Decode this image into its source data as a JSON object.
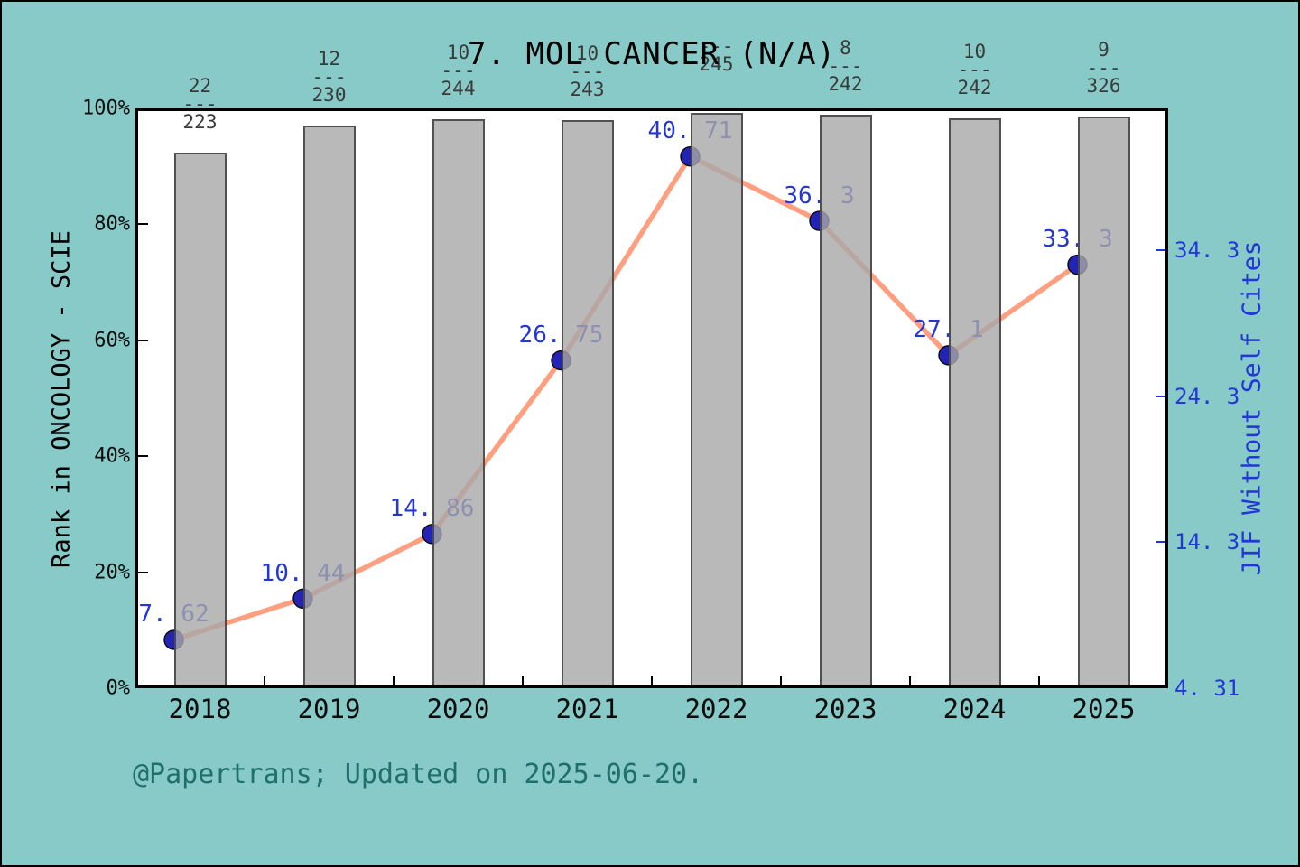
{
  "header": {
    "title": "7. MOL CANCER (N/A)"
  },
  "footer": {
    "text": "@Papertrans; Updated on 2025-06-20."
  },
  "colors": {
    "background": "#87cac7",
    "plot_background": "#ffffff",
    "bar_fill": "#a8a8a8",
    "bar_border": "#3e3e3e",
    "line": "#ff9f80",
    "marker": "#2424b4",
    "value_label_blue": "#2336d8",
    "right_axis_blue": "#2336d8",
    "footer_teal": "#1f6f6a",
    "text_black": "#0c0c0c"
  },
  "chart_data": {
    "type": [
      "bar",
      "line"
    ],
    "title": "7. MOL CANCER (N/A)",
    "categories": [
      "2018",
      "2019",
      "2020",
      "2021",
      "2022",
      "2023",
      "2024",
      "2025"
    ],
    "left_axis": {
      "label": "Rank in ONCOLOGY - SCIE",
      "tick_labels": [
        "0%",
        "20%",
        "40%",
        "60%",
        "80%",
        "100%"
      ],
      "tick_values": [
        0,
        20,
        40,
        60,
        80,
        100
      ],
      "range": [
        0,
        100
      ],
      "grid": false
    },
    "right_axis": {
      "label": "JIF Without Self Cites",
      "ticks": [
        {
          "label": "34. 3",
          "value": 34.3
        },
        {
          "label": "24. 3",
          "value": 24.3
        },
        {
          "label": "14. 3",
          "value": 14.3
        },
        {
          "label": "4. 31",
          "value": 4.31
        }
      ],
      "range": [
        4.31,
        44.0
      ]
    },
    "series": [
      {
        "name": "Rank in ONCOLOGY - SCIE",
        "type": "bar",
        "axis": "left",
        "values_percent": [
          92.4,
          97.0,
          98.1,
          98.0,
          99.2,
          98.9,
          98.3,
          98.6
        ],
        "rank_fractions": [
          {
            "numerator": "22",
            "denominator": "223"
          },
          {
            "numerator": "12",
            "denominator": "230"
          },
          {
            "numerator": "10",
            "denominator": "244"
          },
          {
            "numerator": "10",
            "denominator": "243"
          },
          {
            "numerator": "",
            "denominator": "245"
          },
          {
            "numerator": "8",
            "denominator": "242"
          },
          {
            "numerator": "10",
            "denominator": "242"
          },
          {
            "numerator": "9",
            "denominator": "326"
          }
        ],
        "fraction_separator": "---"
      },
      {
        "name": "JIF Without Self Cites",
        "type": "line",
        "axis": "right",
        "values": [
          7.62,
          10.44,
          14.86,
          26.75,
          40.71,
          36.3,
          27.1,
          33.3
        ],
        "value_labels": [
          "7. 62",
          "10. 44",
          "14. 86",
          "26. 75",
          "40. 71",
          "36. 3",
          "27. 1",
          "33. 3"
        ]
      }
    ]
  }
}
